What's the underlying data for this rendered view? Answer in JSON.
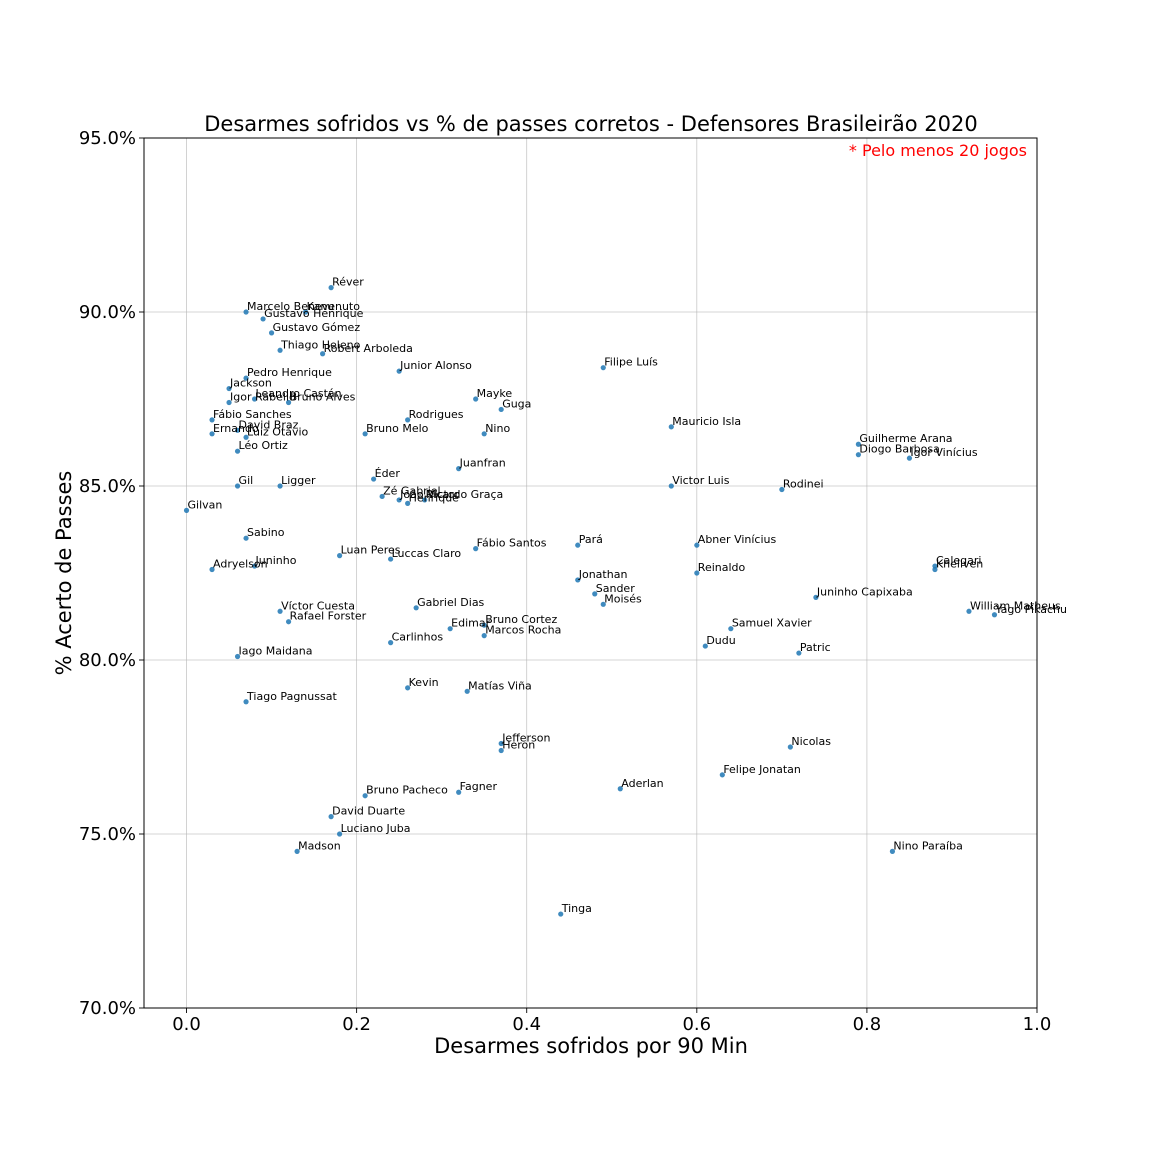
{
  "chart_data": {
    "type": "scatter",
    "title": "Desarmes sofridos vs % de passes corretos - Defensores Brasileirão 2020",
    "xlabel": "Desarmes sofridos por 90 Min",
    "ylabel": "% Acerto de Passes",
    "note": "* Pelo menos 20 jogos",
    "note_color": "#ff0000",
    "point_color": "#1f77b4",
    "xlim": [
      -0.05,
      1.0
    ],
    "ylim": [
      0.7,
      0.95
    ],
    "x_ticks": [
      0.0,
      0.2,
      0.4,
      0.6,
      0.8,
      1.0
    ],
    "x_tick_labels": [
      "0.0",
      "0.2",
      "0.4",
      "0.6",
      "0.8",
      "1.0"
    ],
    "y_ticks": [
      0.7,
      0.75,
      0.8,
      0.85,
      0.9,
      0.95
    ],
    "y_tick_labels": [
      "70.0%",
      "75.0%",
      "80.0%",
      "85.0%",
      "90.0%",
      "95.0%"
    ],
    "grid": true,
    "points": [
      {
        "name": "Réver",
        "x": 0.17,
        "y": 0.907
      },
      {
        "name": "Marcelo Benevenuto",
        "x": 0.07,
        "y": 0.9
      },
      {
        "name": "Kanu",
        "x": 0.14,
        "y": 0.9
      },
      {
        "name": "Gustavo Henrique",
        "x": 0.09,
        "y": 0.898
      },
      {
        "name": "Gustavo Gómez",
        "x": 0.1,
        "y": 0.894
      },
      {
        "name": "Thiago Heleno",
        "x": 0.11,
        "y": 0.889
      },
      {
        "name": "Robert Arboleda",
        "x": 0.16,
        "y": 0.888
      },
      {
        "name": "Junior Alonso",
        "x": 0.25,
        "y": 0.883
      },
      {
        "name": "Filipe Luís",
        "x": 0.49,
        "y": 0.884
      },
      {
        "name": "Pedro Henrique",
        "x": 0.07,
        "y": 0.881
      },
      {
        "name": "Jackson",
        "x": 0.05,
        "y": 0.878
      },
      {
        "name": "Leandro Castán",
        "x": 0.08,
        "y": 0.875
      },
      {
        "name": "Bruno Alves",
        "x": 0.12,
        "y": 0.874
      },
      {
        "name": "Igor Rabello",
        "x": 0.05,
        "y": 0.874
      },
      {
        "name": "Mayke",
        "x": 0.34,
        "y": 0.875
      },
      {
        "name": "Guga",
        "x": 0.37,
        "y": 0.872
      },
      {
        "name": "Fábio Sanches",
        "x": 0.03,
        "y": 0.869
      },
      {
        "name": "Rodrigues",
        "x": 0.26,
        "y": 0.869
      },
      {
        "name": "David Braz",
        "x": 0.06,
        "y": 0.866
      },
      {
        "name": "Ernando",
        "x": 0.03,
        "y": 0.865
      },
      {
        "name": "Luiz Otávio",
        "x": 0.07,
        "y": 0.864
      },
      {
        "name": "Bruno Melo",
        "x": 0.21,
        "y": 0.865
      },
      {
        "name": "Nino",
        "x": 0.35,
        "y": 0.865
      },
      {
        "name": "Mauricio Isla",
        "x": 0.57,
        "y": 0.867
      },
      {
        "name": "Léo Ortiz",
        "x": 0.06,
        "y": 0.86
      },
      {
        "name": "Guilherme Arana",
        "x": 0.79,
        "y": 0.862
      },
      {
        "name": "Diogo Barbosa",
        "x": 0.79,
        "y": 0.859
      },
      {
        "name": "Igor Vinícius",
        "x": 0.85,
        "y": 0.858
      },
      {
        "name": "Juanfran",
        "x": 0.32,
        "y": 0.855
      },
      {
        "name": "Éder",
        "x": 0.22,
        "y": 0.852
      },
      {
        "name": "Gil",
        "x": 0.06,
        "y": 0.85
      },
      {
        "name": "Ligger",
        "x": 0.11,
        "y": 0.85
      },
      {
        "name": "Victor Luis",
        "x": 0.57,
        "y": 0.85
      },
      {
        "name": "Rodinei",
        "x": 0.7,
        "y": 0.849
      },
      {
        "name": "Zé Gabriel",
        "x": 0.23,
        "y": 0.847
      },
      {
        "name": "João Victor",
        "x": 0.25,
        "y": 0.846
      },
      {
        "name": "Ricardo Graça",
        "x": 0.28,
        "y": 0.846
      },
      {
        "name": "Henrique",
        "x": 0.26,
        "y": 0.845
      },
      {
        "name": "Gilvan",
        "x": 0.0,
        "y": 0.843
      },
      {
        "name": "Sabino",
        "x": 0.07,
        "y": 0.835
      },
      {
        "name": "Pará",
        "x": 0.46,
        "y": 0.833
      },
      {
        "name": "Fábio Santos",
        "x": 0.34,
        "y": 0.832
      },
      {
        "name": "Abner Vinícius",
        "x": 0.6,
        "y": 0.833
      },
      {
        "name": "Luan Peres",
        "x": 0.18,
        "y": 0.83
      },
      {
        "name": "Luccas Claro",
        "x": 0.24,
        "y": 0.829
      },
      {
        "name": "Juninho",
        "x": 0.08,
        "y": 0.827
      },
      {
        "name": "Adryelson",
        "x": 0.03,
        "y": 0.826
      },
      {
        "name": "Calegari",
        "x": 0.88,
        "y": 0.827
      },
      {
        "name": "Khellven",
        "x": 0.88,
        "y": 0.826
      },
      {
        "name": "Reinaldo",
        "x": 0.6,
        "y": 0.825
      },
      {
        "name": "Jonathan",
        "x": 0.46,
        "y": 0.823
      },
      {
        "name": "Sander",
        "x": 0.48,
        "y": 0.819
      },
      {
        "name": "Moisés",
        "x": 0.49,
        "y": 0.816
      },
      {
        "name": "Juninho Capixaba",
        "x": 0.74,
        "y": 0.818
      },
      {
        "name": "Víctor Cuesta",
        "x": 0.11,
        "y": 0.814
      },
      {
        "name": "Gabriel Dias",
        "x": 0.27,
        "y": 0.815
      },
      {
        "name": "William Matheus",
        "x": 0.92,
        "y": 0.814
      },
      {
        "name": "Yago Pikachu",
        "x": 0.95,
        "y": 0.813
      },
      {
        "name": "Rafael Forster",
        "x": 0.12,
        "y": 0.811
      },
      {
        "name": "Bruno Cortez",
        "x": 0.35,
        "y": 0.81
      },
      {
        "name": "Edimar",
        "x": 0.31,
        "y": 0.809
      },
      {
        "name": "Marcos Rocha",
        "x": 0.35,
        "y": 0.807
      },
      {
        "name": "Samuel Xavier",
        "x": 0.64,
        "y": 0.809
      },
      {
        "name": "Carlinhos",
        "x": 0.24,
        "y": 0.805
      },
      {
        "name": "Dudu",
        "x": 0.61,
        "y": 0.804
      },
      {
        "name": "Patric",
        "x": 0.72,
        "y": 0.802
      },
      {
        "name": "Iago Maidana",
        "x": 0.06,
        "y": 0.801
      },
      {
        "name": "Kevin",
        "x": 0.26,
        "y": 0.792
      },
      {
        "name": "Matías Viña",
        "x": 0.33,
        "y": 0.791
      },
      {
        "name": "Tiago Pagnussat",
        "x": 0.07,
        "y": 0.788
      },
      {
        "name": "Jefferson",
        "x": 0.37,
        "y": 0.776
      },
      {
        "name": "Heron",
        "x": 0.37,
        "y": 0.774
      },
      {
        "name": "Nicolas",
        "x": 0.71,
        "y": 0.775
      },
      {
        "name": "Felipe Jonatan",
        "x": 0.63,
        "y": 0.767
      },
      {
        "name": "Aderlan",
        "x": 0.51,
        "y": 0.763
      },
      {
        "name": "Fagner",
        "x": 0.32,
        "y": 0.762
      },
      {
        "name": "Bruno Pacheco",
        "x": 0.21,
        "y": 0.761
      },
      {
        "name": "David Duarte",
        "x": 0.17,
        "y": 0.755
      },
      {
        "name": "Luciano Juba",
        "x": 0.18,
        "y": 0.75
      },
      {
        "name": "Madson",
        "x": 0.13,
        "y": 0.745
      },
      {
        "name": "Nino Paraíba",
        "x": 0.83,
        "y": 0.745
      },
      {
        "name": "Tinga",
        "x": 0.44,
        "y": 0.727
      }
    ]
  }
}
